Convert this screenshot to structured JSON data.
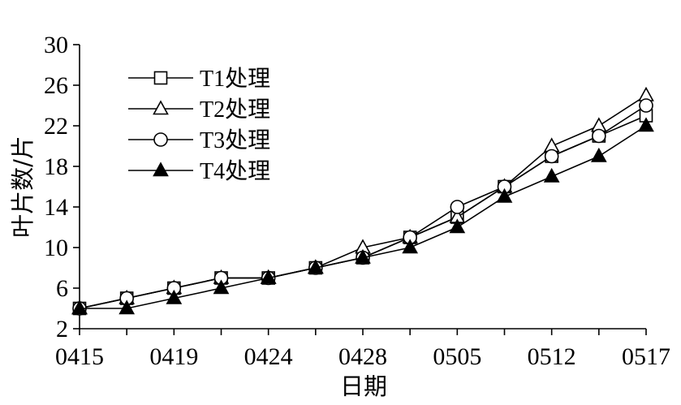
{
  "chart_data": {
    "type": "line",
    "xlabel": "日期",
    "ylabel": "叶片数/片",
    "ylim": [
      2,
      30
    ],
    "yticks": [
      2,
      6,
      10,
      14,
      18,
      22,
      26,
      30
    ],
    "x_labeled_ticks": [
      "0415",
      "0419",
      "0424",
      "0428",
      "0505",
      "0512",
      "0517"
    ],
    "n_points": 13,
    "legend_position": "top-left",
    "series": [
      {
        "name": "T1处理",
        "marker": "square-open",
        "values": [
          4,
          5,
          6,
          7,
          7,
          8,
          9,
          11,
          13,
          16,
          19,
          21,
          23
        ]
      },
      {
        "name": "T2处理",
        "marker": "triangle-open",
        "values": [
          4,
          5,
          6,
          7,
          7,
          8,
          10,
          11,
          13,
          16,
          20,
          22,
          25
        ]
      },
      {
        "name": "T3处理",
        "marker": "circle-open",
        "values": [
          4,
          5,
          6,
          7,
          7,
          8,
          9,
          11,
          14,
          16,
          19,
          21,
          24
        ]
      },
      {
        "name": "T4处理",
        "marker": "triangle-filled",
        "values": [
          4,
          4,
          5,
          6,
          7,
          8,
          9,
          10,
          12,
          15,
          17,
          19,
          22
        ]
      }
    ]
  }
}
